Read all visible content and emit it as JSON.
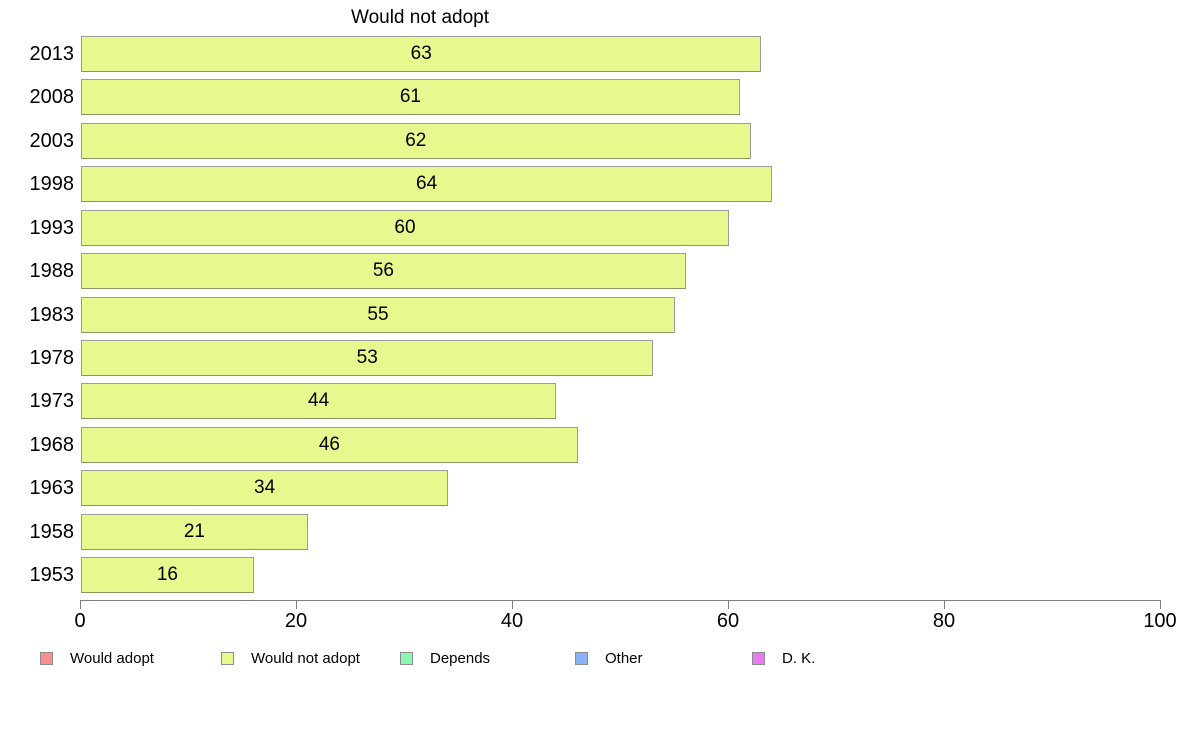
{
  "chart_data": {
    "type": "bar",
    "orientation": "horizontal",
    "title": "Would not adopt",
    "categories": [
      "2013",
      "2008",
      "2003",
      "1998",
      "1993",
      "1988",
      "1983",
      "1978",
      "1973",
      "1968",
      "1963",
      "1958",
      "1953"
    ],
    "values": [
      63,
      61,
      62,
      64,
      60,
      56,
      55,
      53,
      44,
      46,
      34,
      21,
      16
    ],
    "value_labels_position": "center-inside-bar",
    "xlim": [
      0,
      100
    ],
    "x_ticks": [
      0,
      20,
      40,
      60,
      80,
      100
    ],
    "grid": false,
    "legend_position": "bottom",
    "bar_color": "#e6f88e",
    "legend": [
      {
        "label": "Would adopt",
        "color": "#fb8e8e"
      },
      {
        "label": "Would not adopt",
        "color": "#e6f88e"
      },
      {
        "label": "Depends",
        "color": "#8cf7b1"
      },
      {
        "label": "Other",
        "color": "#8ab3f7"
      },
      {
        "label": "D. K.",
        "color": "#e97af2"
      }
    ]
  },
  "colors": {
    "background": "#ffffff",
    "axis": "#7f7f7f",
    "text": "#000000",
    "bar_border": "#9c9c9c"
  }
}
